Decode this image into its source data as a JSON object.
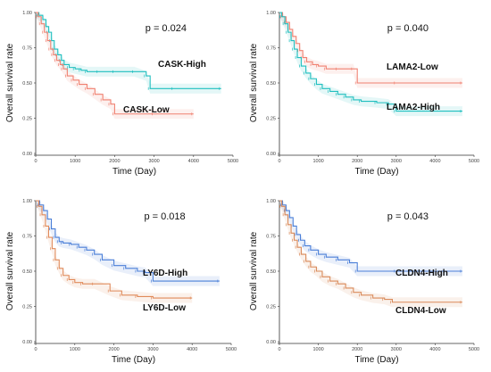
{
  "chart_data": [
    {
      "type": "line",
      "p_value": "p = 0.024",
      "xlabel": "Time (Day)",
      "ylabel": "Overall survival rate",
      "xlim": [
        0,
        5000
      ],
      "ylim": [
        0,
        1
      ],
      "xticks": [
        "0",
        "1000",
        "2000",
        "3000",
        "4000",
        "5000"
      ],
      "yticks": [
        "0.00",
        "0.25",
        "0.50",
        "0.75",
        "1.00"
      ],
      "series": [
        {
          "name": "CASK-High",
          "color": "#1fbfbf",
          "points": [
            [
              0,
              1.0
            ],
            [
              80,
              0.98
            ],
            [
              180,
              0.95
            ],
            [
              260,
              0.9
            ],
            [
              330,
              0.86
            ],
            [
              400,
              0.8
            ],
            [
              470,
              0.74
            ],
            [
              560,
              0.7
            ],
            [
              650,
              0.66
            ],
            [
              720,
              0.63
            ],
            [
              850,
              0.61
            ],
            [
              1000,
              0.6
            ],
            [
              1150,
              0.59
            ],
            [
              1300,
              0.58
            ],
            [
              1600,
              0.58
            ],
            [
              2000,
              0.58
            ],
            [
              2500,
              0.58
            ],
            [
              2800,
              0.55
            ],
            [
              2900,
              0.46
            ],
            [
              3500,
              0.46
            ],
            [
              4700,
              0.46
            ]
          ]
        },
        {
          "name": "CASK-Low",
          "color": "#f08070",
          "points": [
            [
              0,
              1.0
            ],
            [
              60,
              0.97
            ],
            [
              140,
              0.92
            ],
            [
              220,
              0.86
            ],
            [
              300,
              0.8
            ],
            [
              380,
              0.74
            ],
            [
              450,
              0.7
            ],
            [
              530,
              0.66
            ],
            [
              620,
              0.63
            ],
            [
              700,
              0.6
            ],
            [
              800,
              0.55
            ],
            [
              950,
              0.52
            ],
            [
              1100,
              0.49
            ],
            [
              1300,
              0.46
            ],
            [
              1500,
              0.42
            ],
            [
              1700,
              0.38
            ],
            [
              1900,
              0.35
            ],
            [
              2000,
              0.28
            ],
            [
              3000,
              0.28
            ],
            [
              4000,
              0.28
            ]
          ]
        }
      ]
    },
    {
      "type": "line",
      "p_value": "p = 0.040",
      "xlabel": "Time (Day)",
      "ylabel": "Overall survival rate",
      "xlim": [
        0,
        5000
      ],
      "ylim": [
        0,
        1
      ],
      "xticks": [
        "0",
        "1000",
        "2000",
        "3000",
        "4000",
        "5000"
      ],
      "yticks": [
        "0.00",
        "0.25",
        "0.50",
        "0.75",
        "1.00"
      ],
      "series": [
        {
          "name": "LAMA2-Low",
          "color": "#f08070",
          "points": [
            [
              0,
              1.0
            ],
            [
              80,
              0.97
            ],
            [
              170,
              0.93
            ],
            [
              260,
              0.88
            ],
            [
              340,
              0.83
            ],
            [
              430,
              0.78
            ],
            [
              520,
              0.73
            ],
            [
              600,
              0.68
            ],
            [
              700,
              0.65
            ],
            [
              850,
              0.63
            ],
            [
              1000,
              0.62
            ],
            [
              1200,
              0.6
            ],
            [
              1500,
              0.6
            ],
            [
              1900,
              0.6
            ],
            [
              2000,
              0.5
            ],
            [
              3000,
              0.5
            ],
            [
              4700,
              0.5
            ]
          ]
        },
        {
          "name": "LAMA2-High",
          "color": "#1fbfbf",
          "points": [
            [
              0,
              1.0
            ],
            [
              60,
              0.97
            ],
            [
              140,
              0.92
            ],
            [
              220,
              0.86
            ],
            [
              300,
              0.8
            ],
            [
              380,
              0.74
            ],
            [
              460,
              0.68
            ],
            [
              560,
              0.62
            ],
            [
              680,
              0.57
            ],
            [
              800,
              0.53
            ],
            [
              950,
              0.49
            ],
            [
              1100,
              0.46
            ],
            [
              1300,
              0.44
            ],
            [
              1500,
              0.42
            ],
            [
              1700,
              0.4
            ],
            [
              1900,
              0.38
            ],
            [
              2100,
              0.37
            ],
            [
              2500,
              0.36
            ],
            [
              2800,
              0.35
            ],
            [
              3000,
              0.3
            ],
            [
              4700,
              0.3
            ]
          ]
        }
      ]
    },
    {
      "type": "line",
      "p_value": "p = 0.018",
      "xlabel": "Time (Day)",
      "ylabel": "Overall survival rate",
      "xlim": [
        0,
        5000
      ],
      "ylim": [
        0,
        1
      ],
      "xticks": [
        "0",
        "1000",
        "2000",
        "3000",
        "4000",
        "5000"
      ],
      "yticks": [
        "0.00",
        "0.25",
        "0.50",
        "0.75",
        "1.00"
      ],
      "series": [
        {
          "name": "LY6D-High",
          "color": "#4a7fd8",
          "points": [
            [
              0,
              1.0
            ],
            [
              100,
              0.97
            ],
            [
              200,
              0.93
            ],
            [
              300,
              0.87
            ],
            [
              400,
              0.8
            ],
            [
              500,
              0.74
            ],
            [
              600,
              0.71
            ],
            [
              700,
              0.7
            ],
            [
              900,
              0.69
            ],
            [
              1100,
              0.67
            ],
            [
              1300,
              0.65
            ],
            [
              1500,
              0.62
            ],
            [
              1700,
              0.58
            ],
            [
              2000,
              0.54
            ],
            [
              2300,
              0.52
            ],
            [
              2600,
              0.5
            ],
            [
              2800,
              0.49
            ],
            [
              3000,
              0.43
            ],
            [
              4700,
              0.43
            ]
          ]
        },
        {
          "name": "LY6D-Low",
          "color": "#e08a5a",
          "points": [
            [
              0,
              1.0
            ],
            [
              80,
              0.96
            ],
            [
              160,
              0.9
            ],
            [
              250,
              0.82
            ],
            [
              330,
              0.74
            ],
            [
              420,
              0.66
            ],
            [
              500,
              0.58
            ],
            [
              600,
              0.52
            ],
            [
              700,
              0.47
            ],
            [
              850,
              0.44
            ],
            [
              1000,
              0.42
            ],
            [
              1200,
              0.41
            ],
            [
              1500,
              0.41
            ],
            [
              1900,
              0.36
            ],
            [
              2200,
              0.33
            ],
            [
              2600,
              0.32
            ],
            [
              3000,
              0.31
            ],
            [
              4000,
              0.31
            ]
          ]
        }
      ]
    },
    {
      "type": "line",
      "p_value": "p = 0.043",
      "xlabel": "Time (Day)",
      "ylabel": "Overall survival rate",
      "xlim": [
        0,
        5000
      ],
      "ylim": [
        0,
        1
      ],
      "xticks": [
        "0",
        "1000",
        "2000",
        "3000",
        "4000",
        "5000"
      ],
      "yticks": [
        "0.00",
        "0.25",
        "0.50",
        "0.75",
        "1.00"
      ],
      "series": [
        {
          "name": "CLDN4-High",
          "color": "#4a7fd8",
          "points": [
            [
              0,
              1.0
            ],
            [
              80,
              0.97
            ],
            [
              170,
              0.93
            ],
            [
              260,
              0.88
            ],
            [
              350,
              0.82
            ],
            [
              440,
              0.76
            ],
            [
              540,
              0.72
            ],
            [
              650,
              0.68
            ],
            [
              800,
              0.65
            ],
            [
              1000,
              0.62
            ],
            [
              1200,
              0.6
            ],
            [
              1500,
              0.58
            ],
            [
              1800,
              0.56
            ],
            [
              2000,
              0.5
            ],
            [
              3000,
              0.5
            ],
            [
              4700,
              0.5
            ]
          ]
        },
        {
          "name": "CLDN4-Low",
          "color": "#d98a5a",
          "points": [
            [
              0,
              1.0
            ],
            [
              60,
              0.96
            ],
            [
              140,
              0.9
            ],
            [
              220,
              0.83
            ],
            [
              300,
              0.77
            ],
            [
              380,
              0.72
            ],
            [
              460,
              0.67
            ],
            [
              560,
              0.62
            ],
            [
              680,
              0.57
            ],
            [
              800,
              0.53
            ],
            [
              950,
              0.5
            ],
            [
              1100,
              0.46
            ],
            [
              1300,
              0.43
            ],
            [
              1500,
              0.41
            ],
            [
              1700,
              0.38
            ],
            [
              1900,
              0.35
            ],
            [
              2100,
              0.33
            ],
            [
              2400,
              0.31
            ],
            [
              2700,
              0.3
            ],
            [
              2900,
              0.28
            ],
            [
              4700,
              0.28
            ]
          ]
        }
      ]
    }
  ]
}
